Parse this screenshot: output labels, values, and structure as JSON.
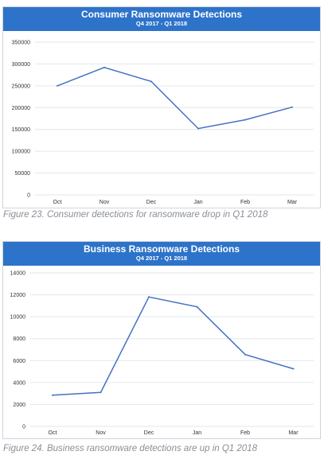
{
  "chart_data": [
    {
      "type": "line",
      "title": "Consumer Ransomware Detections",
      "subtitle": "Q4 2017 - Q1 2018",
      "categories": [
        "Oct",
        "Nov",
        "Dec",
        "Jan",
        "Feb",
        "Mar"
      ],
      "values": [
        250000,
        292000,
        260000,
        152000,
        172000,
        201000
      ],
      "ylim": [
        0,
        350000
      ],
      "yticks": [
        "0",
        "50000",
        "100000",
        "150000",
        "200000",
        "250000",
        "300000",
        "350000"
      ],
      "grid": true,
      "color": "#4472c4",
      "caption": "Figure 23. Consumer detections for ransomware drop in Q1 2018"
    },
    {
      "type": "line",
      "title": "Business Ransomware Detections",
      "subtitle": "Q4 2017 - Q1 2018",
      "categories": [
        "Oct",
        "Nov",
        "Dec",
        "Jan",
        "Feb",
        "Mar"
      ],
      "values": [
        2850,
        3100,
        11800,
        10900,
        6550,
        5250
      ],
      "ylim": [
        0,
        14000
      ],
      "yticks": [
        "0",
        "2000",
        "4000",
        "6000",
        "8000",
        "10000",
        "12000",
        "14000"
      ],
      "grid": true,
      "color": "#4472c4",
      "caption": "Figure 24. Business ransomware detections are up in Q1 2018"
    }
  ]
}
